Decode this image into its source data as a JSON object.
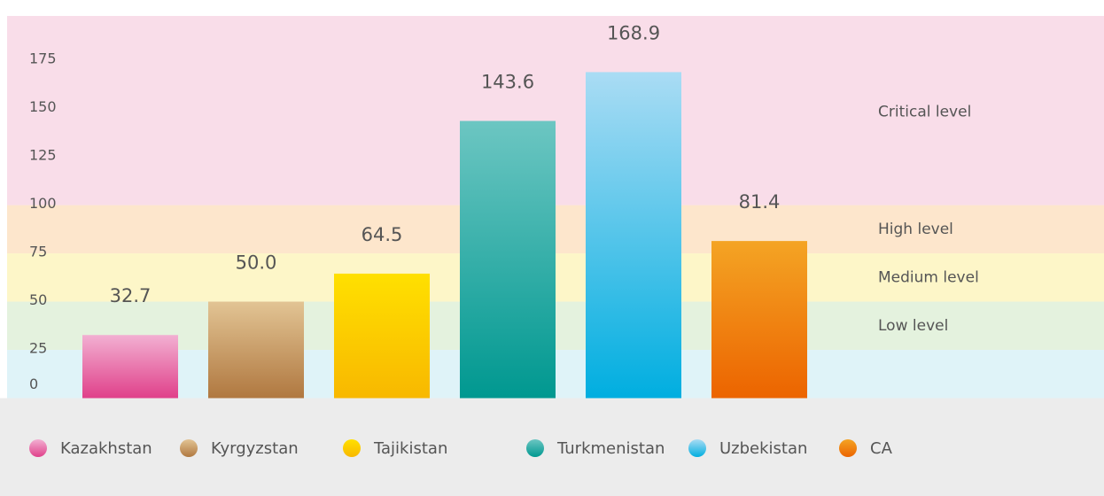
{
  "chart_data": {
    "type": "bar",
    "categories": [
      "Kazakhstan",
      "Kyrgyzstan",
      "Tajikistan",
      "Turkmenistan",
      "Uzbekistan",
      "CA"
    ],
    "values": [
      32.7,
      50.0,
      64.5,
      143.6,
      168.9,
      81.4
    ],
    "value_labels": [
      "32.7",
      "50.0",
      "64.5",
      "143.6",
      "168.9",
      "81.4"
    ],
    "colors": [
      "#e0408a",
      "#b07840",
      "#f8b800",
      "#009890",
      "#00aee0",
      "#ec6400"
    ],
    "colors_top": [
      "#f2b0d2",
      "#e2c494",
      "#ffe000",
      "#6cc6c2",
      "#aadcf4",
      "#f4a424"
    ],
    "ylim": [
      0,
      198
    ],
    "yticks": [
      0,
      25,
      50,
      75,
      100,
      125,
      150,
      175
    ],
    "bands": [
      {
        "from": 0,
        "to": 25,
        "color": "#dff3f8"
      },
      {
        "from": 25,
        "to": 50,
        "color": "#e4f2de",
        "label": "Low level"
      },
      {
        "from": 50,
        "to": 75,
        "color": "#fdf6c8",
        "label": "Medium level"
      },
      {
        "from": 75,
        "to": 100,
        "color": "#fde6cc",
        "label": "High level"
      },
      {
        "from": 100,
        "to": 198,
        "color": "#f9dde9",
        "label": "Critical level"
      }
    ],
    "legend": "bottom"
  }
}
